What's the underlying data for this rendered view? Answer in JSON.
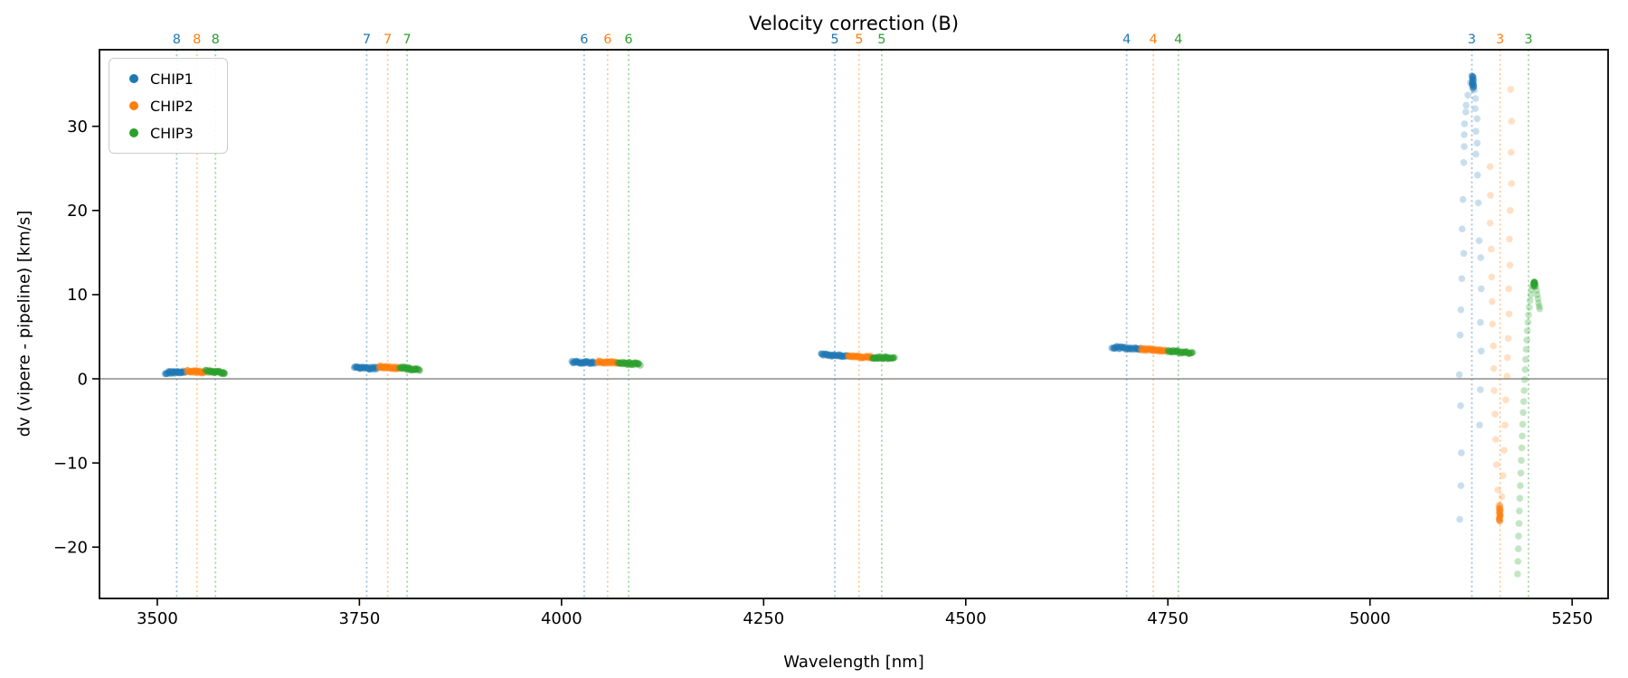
{
  "title": "Velocity correction (B)",
  "legend": {
    "items": [
      {
        "label": "CHIP1",
        "color": "#1f77b4"
      },
      {
        "label": "CHIP2",
        "color": "#ff7f0e"
      },
      {
        "label": "CHIP3",
        "color": "#2ca02c"
      }
    ]
  },
  "chart_data": {
    "type": "scatter",
    "title": "Velocity correction (B)",
    "xlabel": "Wavelength [nm]",
    "ylabel": "dv (vipere - pipeline) [km/s]",
    "xlim": [
      3428.5,
      5294.5
    ],
    "ylim": [
      -26.1,
      39.1
    ],
    "xticks": [
      3500,
      3750,
      4000,
      4250,
      4500,
      4750,
      5000,
      5250
    ],
    "yticks": [
      -20,
      -10,
      0,
      10,
      20,
      30
    ],
    "grid": false,
    "legend_position": "upper left",
    "zero_line": {
      "y": 0,
      "color": "#808080"
    },
    "series_colors": {
      "CHIP1": "#1f77b4",
      "CHIP2": "#ff7f0e",
      "CHIP3": "#2ca02c"
    },
    "order_lines": [
      {
        "order": "8",
        "chips": [
          {
            "chip": "CHIP1",
            "wavelength": 3524
          },
          {
            "chip": "CHIP2",
            "wavelength": 3549
          },
          {
            "chip": "CHIP3",
            "wavelength": 3572
          }
        ]
      },
      {
        "order": "7",
        "chips": [
          {
            "chip": "CHIP1",
            "wavelength": 3759
          },
          {
            "chip": "CHIP2",
            "wavelength": 3785
          },
          {
            "chip": "CHIP3",
            "wavelength": 3809
          }
        ]
      },
      {
        "order": "6",
        "chips": [
          {
            "chip": "CHIP1",
            "wavelength": 4028
          },
          {
            "chip": "CHIP2",
            "wavelength": 4057
          },
          {
            "chip": "CHIP3",
            "wavelength": 4083
          }
        ]
      },
      {
        "order": "5",
        "chips": [
          {
            "chip": "CHIP1",
            "wavelength": 4338
          },
          {
            "chip": "CHIP2",
            "wavelength": 4368
          },
          {
            "chip": "CHIP3",
            "wavelength": 4396
          }
        ]
      },
      {
        "order": "4",
        "chips": [
          {
            "chip": "CHIP1",
            "wavelength": 4699
          },
          {
            "chip": "CHIP2",
            "wavelength": 4732
          },
          {
            "chip": "CHIP3",
            "wavelength": 4763
          }
        ]
      },
      {
        "order": "3",
        "chips": [
          {
            "chip": "CHIP1",
            "wavelength": 5126
          },
          {
            "chip": "CHIP2",
            "wavelength": 5161
          },
          {
            "chip": "CHIP3",
            "wavelength": 5196
          }
        ]
      }
    ],
    "flat_clusters": [
      {
        "order": "8",
        "chip": "CHIP1",
        "nm": [
          3510,
          3534
        ],
        "dv": [
          0.72,
          0.82
        ],
        "n": 30
      },
      {
        "order": "8",
        "chip": "CHIP2",
        "nm": [
          3537,
          3559
        ],
        "dv": [
          0.88,
          0.8
        ],
        "n": 30
      },
      {
        "order": "8",
        "chip": "CHIP3",
        "nm": [
          3560,
          3584
        ],
        "dv": [
          0.9,
          0.72
        ],
        "n": 30
      },
      {
        "order": "7",
        "chip": "CHIP1",
        "nm": [
          3744,
          3772
        ],
        "dv": [
          1.32,
          1.24
        ],
        "n": 32
      },
      {
        "order": "7",
        "chip": "CHIP2",
        "nm": [
          3774,
          3798
        ],
        "dv": [
          1.42,
          1.3
        ],
        "n": 32
      },
      {
        "order": "7",
        "chip": "CHIP3",
        "nm": [
          3800,
          3824
        ],
        "dv": [
          1.32,
          1.05
        ],
        "n": 32
      },
      {
        "order": "6",
        "chip": "CHIP1",
        "nm": [
          4013,
          4041
        ],
        "dv": [
          1.98,
          1.9
        ],
        "n": 32
      },
      {
        "order": "6",
        "chip": "CHIP2",
        "nm": [
          4044,
          4070
        ],
        "dv": [
          2.02,
          1.9
        ],
        "n": 32
      },
      {
        "order": "6",
        "chip": "CHIP3",
        "nm": [
          4070,
          4097
        ],
        "dv": [
          1.92,
          1.72
        ],
        "n": 32
      },
      {
        "order": "5",
        "chip": "CHIP1",
        "nm": [
          4321,
          4354
        ],
        "dv": [
          2.88,
          2.7
        ],
        "n": 34
      },
      {
        "order": "5",
        "chip": "CHIP2",
        "nm": [
          4354,
          4384
        ],
        "dv": [
          2.68,
          2.54
        ],
        "n": 34
      },
      {
        "order": "5",
        "chip": "CHIP3",
        "nm": [
          4384,
          4412
        ],
        "dv": [
          2.56,
          2.4
        ],
        "n": 34
      },
      {
        "order": "4",
        "chip": "CHIP1",
        "nm": [
          4681,
          4716
        ],
        "dv": [
          3.75,
          3.52
        ],
        "n": 34
      },
      {
        "order": "4",
        "chip": "CHIP2",
        "nm": [
          4717,
          4747
        ],
        "dv": [
          3.52,
          3.32
        ],
        "n": 34
      },
      {
        "order": "4",
        "chip": "CHIP3",
        "nm": [
          4750,
          4780
        ],
        "dv": [
          3.32,
          3.05
        ],
        "n": 34
      }
    ],
    "order3_structures": {
      "CHIP1": {
        "dense": [
          [
            5126,
            36.0
          ],
          [
            5127,
            35.8
          ],
          [
            5128,
            35.5
          ],
          [
            5126.5,
            35.3
          ],
          [
            5127.8,
            35.1
          ],
          [
            5126.2,
            34.9
          ],
          [
            5128.4,
            34.7
          ],
          [
            5127.2,
            34.5
          ],
          [
            5126.8,
            35.6
          ],
          [
            5128,
            34.9
          ],
          [
            5127.5,
            35.9
          ],
          [
            5126.4,
            35.1
          ]
        ],
        "faint": [
          [
            5124,
            35.2
          ],
          [
            5129,
            34.3
          ],
          [
            5121,
            33.7
          ],
          [
            5130.5,
            33.3
          ],
          [
            5119,
            32.5
          ],
          [
            5130,
            32.1
          ],
          [
            5118.5,
            31.7
          ],
          [
            5132.5,
            30.9
          ],
          [
            5117,
            30.3
          ],
          [
            5131,
            29.4
          ],
          [
            5116.5,
            29.0
          ],
          [
            5132.5,
            28.0
          ],
          [
            5116.5,
            27.6
          ],
          [
            5131,
            26.7
          ],
          [
            5116,
            25.7
          ],
          [
            5133,
            24.2
          ],
          [
            5115,
            21.3
          ],
          [
            5134,
            20.9
          ],
          [
            5114,
            17.8
          ],
          [
            5135,
            16.4
          ],
          [
            5116,
            14.9
          ],
          [
            5137,
            14.4
          ],
          [
            5113.5,
            11.9
          ],
          [
            5137.5,
            10.7
          ],
          [
            5112.5,
            8.2
          ],
          [
            5136.5,
            6.7
          ],
          [
            5111.5,
            5.2
          ],
          [
            5137.5,
            3.3
          ],
          [
            5110.5,
            0.5
          ],
          [
            5136.5,
            -1.3
          ],
          [
            5112,
            -3.2
          ],
          [
            5135.5,
            -5.5
          ],
          [
            5113,
            -8.8
          ],
          [
            5112.5,
            -12.7
          ],
          [
            5111,
            -16.7
          ]
        ]
      },
      "CHIP2": {
        "dense": [
          [
            5159.8,
            -15.4
          ],
          [
            5161,
            -15.7
          ],
          [
            5160.2,
            -16.0
          ],
          [
            5160.8,
            -16.3
          ],
          [
            5159.9,
            -16.6
          ],
          [
            5160.5,
            -16.9
          ],
          [
            5161.2,
            -16.2
          ],
          [
            5160,
            -15.8
          ],
          [
            5160.7,
            -15.1
          ],
          [
            5160.3,
            -16.5
          ],
          [
            5160.9,
            -15.5
          ],
          [
            5160.1,
            -16.8
          ]
        ],
        "faint": [
          [
            5174,
            34.4
          ],
          [
            5175,
            30.6
          ],
          [
            5174.5,
            26.9
          ],
          [
            5175,
            23.2
          ],
          [
            5173.5,
            20.0
          ],
          [
            5172.5,
            16.6
          ],
          [
            5173,
            13.5
          ],
          [
            5171.5,
            10.7
          ],
          [
            5172,
            7.7
          ],
          [
            5171,
            4.8
          ],
          [
            5170,
            2.5
          ],
          [
            5169.5,
            0.3
          ],
          [
            5168,
            -2.5
          ],
          [
            5167,
            -5.5
          ],
          [
            5166,
            -8.5
          ],
          [
            5164.5,
            -11.5
          ],
          [
            5163,
            -14.0
          ],
          [
            5148.5,
            25.2
          ],
          [
            5149,
            21.8
          ],
          [
            5148.5,
            18.5
          ],
          [
            5150,
            15.4
          ],
          [
            5150.5,
            12.1
          ],
          [
            5151,
            9.2
          ],
          [
            5151.5,
            6.5
          ],
          [
            5152.5,
            3.9
          ],
          [
            5153,
            1.2
          ],
          [
            5153.5,
            -1.4
          ],
          [
            5154.5,
            -4.2
          ],
          [
            5155.5,
            -7.2
          ],
          [
            5156.5,
            -10.2
          ],
          [
            5158,
            -13.2
          ],
          [
            5159,
            -15.0
          ]
        ]
      },
      "CHIP3": {
        "dense": [
          [
            5202.8,
            11.4
          ],
          [
            5203.4,
            11.5
          ],
          [
            5203,
            11.2
          ],
          [
            5203.7,
            11.3
          ],
          [
            5203.1,
            11.5
          ],
          [
            5202.7,
            11.1
          ],
          [
            5203.5,
            11.0
          ],
          [
            5203.2,
            11.35
          ]
        ],
        "faint": [
          [
            5182.5,
            -23.2
          ],
          [
            5183,
            -21.7
          ],
          [
            5183.4,
            -20.2
          ],
          [
            5183.8,
            -18.7
          ],
          [
            5184.3,
            -17.2
          ],
          [
            5184.8,
            -15.7
          ],
          [
            5185.3,
            -14.2
          ],
          [
            5185.9,
            -12.7
          ],
          [
            5186.5,
            -11.2
          ],
          [
            5187.1,
            -9.7
          ],
          [
            5187.7,
            -8.2
          ],
          [
            5188.3,
            -6.8
          ],
          [
            5188.9,
            -5.4
          ],
          [
            5189.5,
            -4.0
          ],
          [
            5190.1,
            -2.7
          ],
          [
            5190.7,
            -1.4
          ],
          [
            5191.3,
            -0.1
          ],
          [
            5191.9,
            1.1
          ],
          [
            5192.5,
            2.3
          ],
          [
            5193.2,
            3.5
          ],
          [
            5193.9,
            4.6
          ],
          [
            5194.6,
            5.7
          ],
          [
            5195.4,
            6.7
          ],
          [
            5196.2,
            7.6
          ],
          [
            5197.1,
            8.5
          ],
          [
            5198,
            9.3
          ],
          [
            5199,
            10.0
          ],
          [
            5200,
            10.6
          ],
          [
            5201,
            11.0
          ],
          [
            5202,
            11.3
          ],
          [
            5203,
            11.45
          ],
          [
            5204.2,
            11.3
          ],
          [
            5205.2,
            11.0
          ],
          [
            5206.1,
            10.5
          ],
          [
            5206.9,
            10.0
          ],
          [
            5207.7,
            9.5
          ],
          [
            5208.5,
            9.0
          ],
          [
            5209.3,
            8.6
          ],
          [
            5210,
            8.3
          ]
        ]
      }
    }
  }
}
